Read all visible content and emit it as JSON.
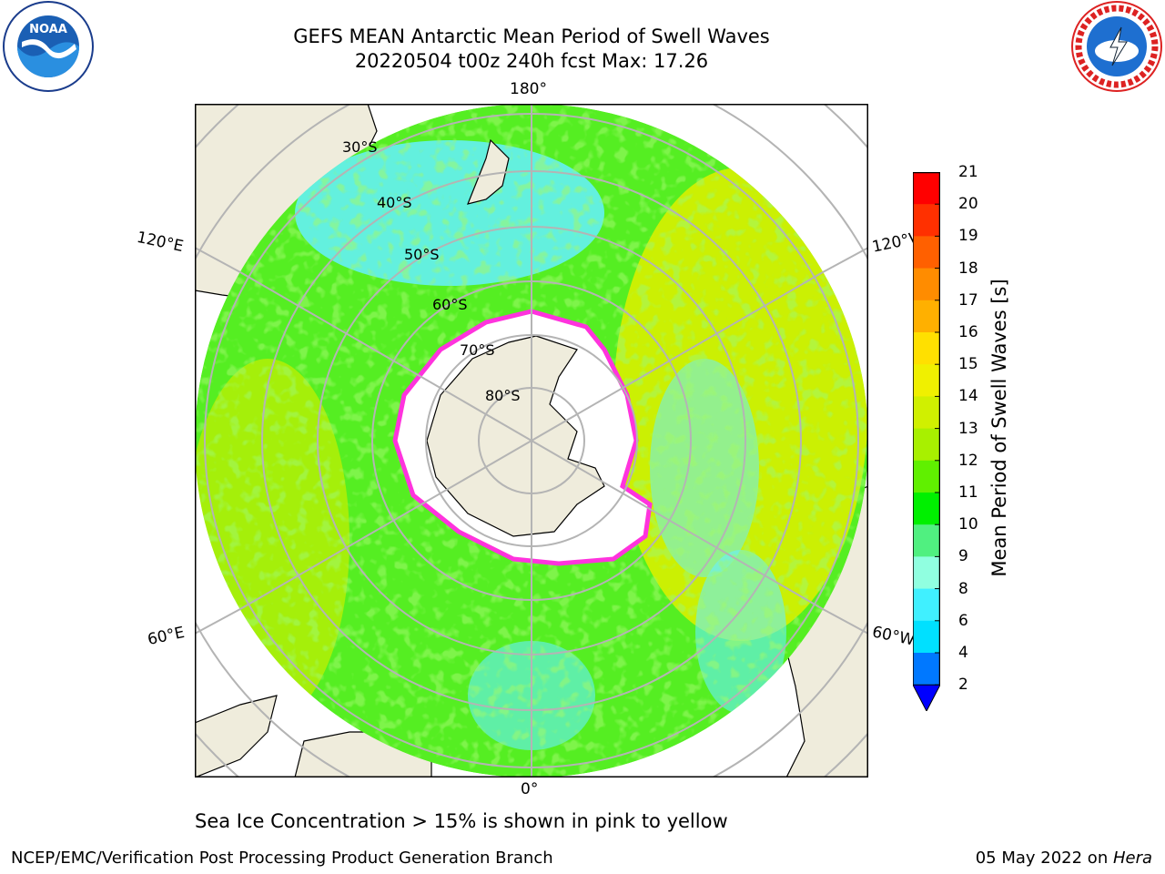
{
  "title_line1": "GEFS MEAN Antarctic Mean Period of Swell Waves",
  "title_line2": "20220504 t00z 240h fcst   Max: 17.26",
  "logos": {
    "left": "noaa-logo",
    "left_text": "NOAA",
    "right": "nws-logo"
  },
  "meridian_labels": {
    "top": "180°",
    "bottom": "0°",
    "upper_left": "120°E",
    "upper_right": "120°W",
    "lower_left": "60°E",
    "lower_right": "60°W"
  },
  "latitude_labels": [
    "30°S",
    "40°S",
    "50°S",
    "60°S",
    "70°S",
    "80°S"
  ],
  "colorbar": {
    "label": "Mean Period of Swell Waves [s]",
    "ticks": [
      "21",
      "20",
      "19",
      "18",
      "17",
      "16",
      "15",
      "14",
      "13",
      "12",
      "11",
      "10",
      "9",
      "8",
      "6",
      "4",
      "2"
    ],
    "colors": [
      "#ff0000",
      "#ff3000",
      "#ff6000",
      "#ff8c00",
      "#ffb000",
      "#ffe000",
      "#f0f000",
      "#d0f000",
      "#a8f000",
      "#60f000",
      "#00f000",
      "#50f080",
      "#90ffe0",
      "#40f0ff",
      "#00e0ff",
      "#0078ff"
    ],
    "extend_color": "#0000ff"
  },
  "map_colors": {
    "land": "#efecdc",
    "ice": "#ffffff",
    "ice_edge": "#ff33dd",
    "ocean_main": "#55ee22",
    "ocean_yellow": "#d8f000",
    "ocean_cyan": "#66f0ff",
    "grid": "#b4b4b4"
  },
  "footnote": "Sea Ice Concentration > 15% is shown in pink to yellow",
  "footer_left": "NCEP/EMC/Verification Post Processing Product Generation Branch",
  "footer_right_prefix": "05 May 2022 on ",
  "footer_right_host": "Hera"
}
